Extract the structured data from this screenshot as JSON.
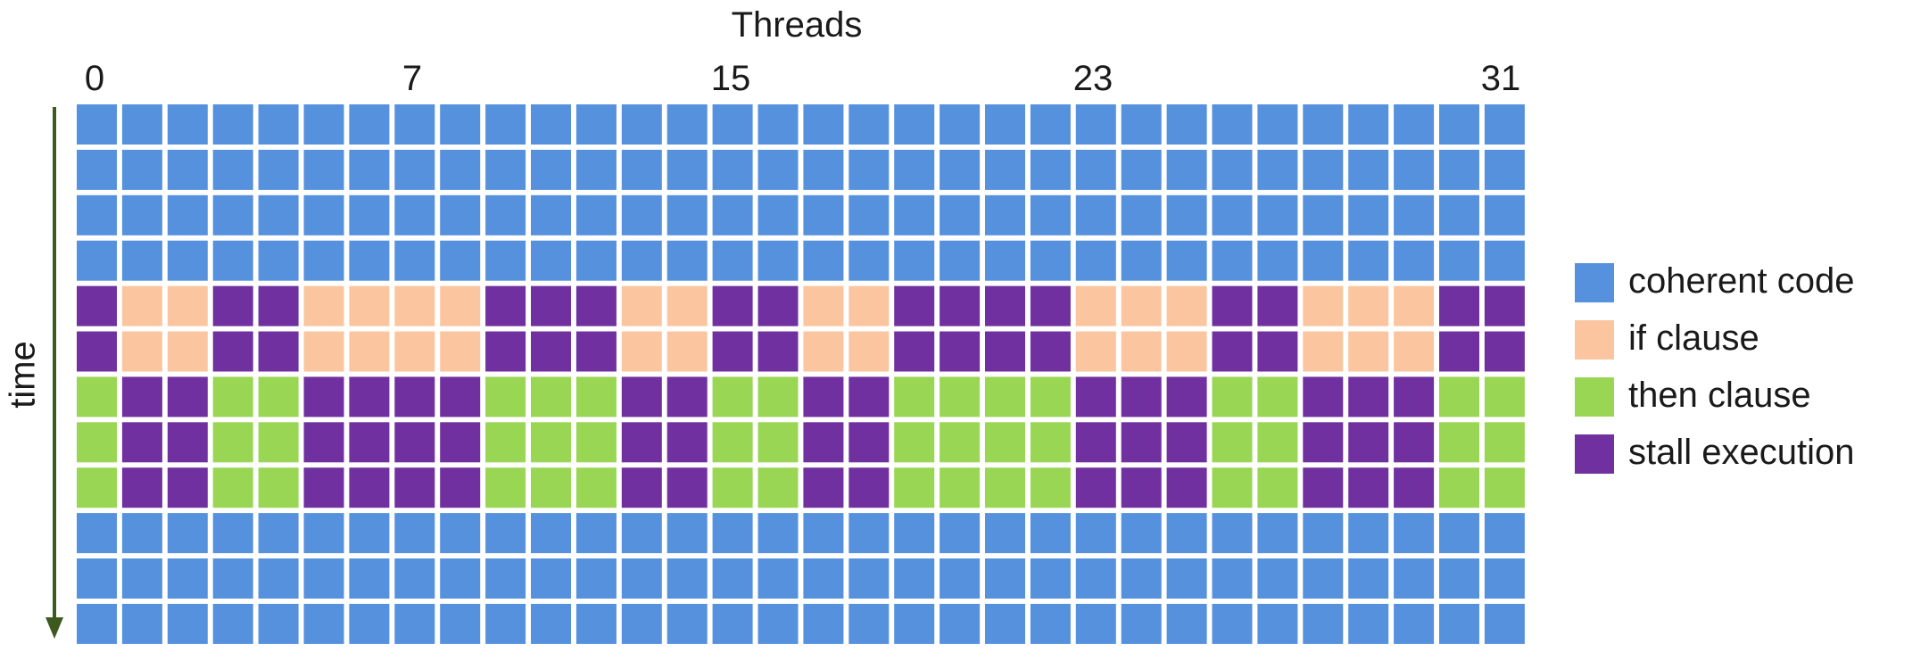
{
  "title": "Threads",
  "y_label": "time",
  "ticks": [
    "0",
    "7",
    "15",
    "23",
    "31"
  ],
  "colors": {
    "coherent": "#5591dc",
    "if": "#fbc69f",
    "then": "#99d653",
    "stall": "#7030a0",
    "arrow": "#3d5a1e"
  },
  "legend": [
    {
      "key": "coherent",
      "label": "coherent code"
    },
    {
      "key": "if",
      "label": "if clause"
    },
    {
      "key": "then",
      "label": "then clause"
    },
    {
      "key": "stall",
      "label": "stall execution"
    }
  ],
  "grid": {
    "threads": 32,
    "rows": [
      "CCCCCCCCCCCCCCCCCCCCCCCCCCCCCCCC",
      "CCCCCCCCCCCCCCCCCCCCCCCCCCCCCCCC",
      "CCCCCCCCCCCCCCCCCCCCCCCCCCCCCCCC",
      "CCCCCCCCCCCCCCCCCCCCCCCCCCCCCCCC",
      "SIISSIIIISSSIISSIISSSSIIISSIIISS",
      "SIISSIIIISSSIISSIISSSSIIISSIIISS",
      "TSSTTSSSSTTTSSTTSSTTTTSSSTTSSSTT",
      "TSSTTSSSSTTTSSTTSSTTTTSSSTTSSSTT",
      "TSSTTSSSSTTTSSTTSSTTTTSSSTTSSSTT",
      "CCCCCCCCCCCCCCCCCCCCCCCCCCCCCCCC",
      "CCCCCCCCCCCCCCCCCCCCCCCCCCCCCCCC",
      "CCCCCCCCCCCCCCCCCCCCCCCCCCCCCCCC"
    ]
  }
}
